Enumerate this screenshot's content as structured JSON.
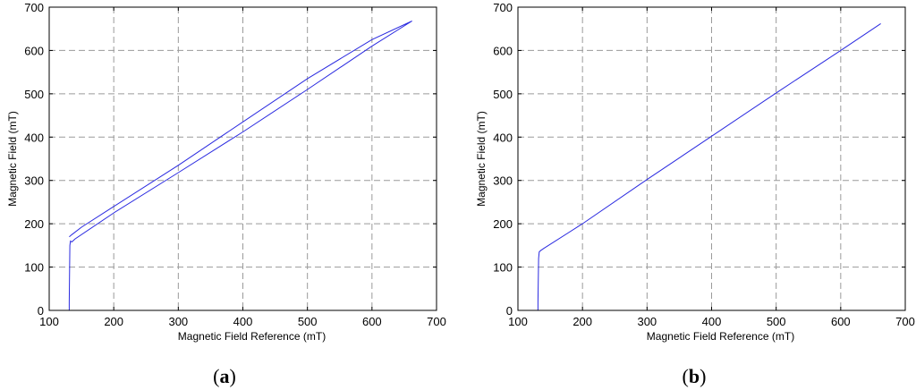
{
  "chart_data": [
    {
      "type": "line",
      "panel": "a",
      "caption": "a",
      "xlabel": "Magnetic Field Reference (mT)",
      "ylabel": "Magnetic Field (mT)",
      "xlim": [
        100,
        700
      ],
      "ylim": [
        0,
        700
      ],
      "xticks": [
        100,
        200,
        300,
        400,
        500,
        600,
        700
      ],
      "yticks": [
        0,
        100,
        200,
        300,
        400,
        500,
        600,
        700
      ],
      "grid": true,
      "series": [
        {
          "color": "#2a2ae0",
          "x": [
            131,
            131,
            132,
            133,
            135,
            140,
            200,
            300,
            400,
            500,
            600,
            662,
            600,
            500,
            400,
            300,
            200,
            150,
            135,
            131
          ],
          "y": [
            0,
            20,
            150,
            160,
            158,
            165,
            225,
            318,
            412,
            510,
            610,
            668,
            625,
            535,
            435,
            335,
            240,
            192,
            175,
            170
          ]
        }
      ]
    },
    {
      "type": "line",
      "panel": "b",
      "caption": "b",
      "xlabel": "Magnetic Field Reference (mT)",
      "ylabel": "Magnetic Field (mT)",
      "xlim": [
        100,
        700
      ],
      "ylim": [
        0,
        700
      ],
      "xticks": [
        100,
        200,
        300,
        400,
        500,
        600,
        700
      ],
      "yticks": [
        0,
        100,
        200,
        300,
        400,
        500,
        600,
        700
      ],
      "grid": true,
      "series": [
        {
          "color": "#2a2ae0",
          "x": [
            131,
            131,
            132,
            133,
            135,
            140,
            200,
            300,
            400,
            500,
            600,
            662
          ],
          "y": [
            0,
            20,
            120,
            135,
            138,
            143,
            200,
            302,
            402,
            502,
            600,
            662
          ]
        }
      ]
    }
  ]
}
